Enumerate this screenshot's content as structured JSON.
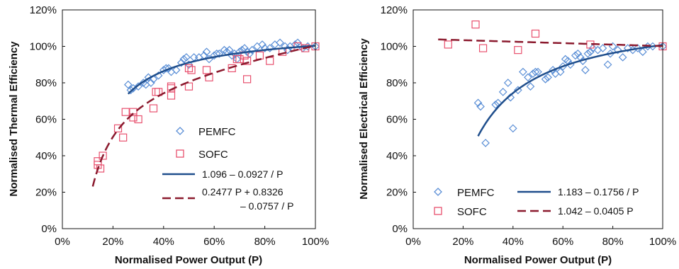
{
  "chart_data": [
    {
      "type": "scatter",
      "id": "thermal",
      "xlabel": "Normalised Power Output (P)",
      "ylabel": "Normalised Thermal Efficiency",
      "xlim": [
        0,
        100
      ],
      "ylim": [
        0,
        120
      ],
      "x_ticks": [
        "0%",
        "20%",
        "40%",
        "60%",
        "80%",
        "100%"
      ],
      "y_ticks": [
        "0%",
        "20%",
        "40%",
        "60%",
        "80%",
        "100%",
        "120%"
      ],
      "grid": false,
      "legend_placement": "lower-right",
      "series": [
        {
          "name": "PEMFC",
          "kind": "points",
          "marker": "diamond",
          "color": "#5b8fd6",
          "points": [
            [
              26,
              79
            ],
            [
              27,
              76
            ],
            [
              28,
              77
            ],
            [
              30,
              78
            ],
            [
              32,
              80
            ],
            [
              33,
              79
            ],
            [
              34,
              83
            ],
            [
              35,
              80
            ],
            [
              36,
              82
            ],
            [
              38,
              84
            ],
            [
              40,
              87
            ],
            [
              41,
              88
            ],
            [
              42,
              88
            ],
            [
              43,
              86
            ],
            [
              45,
              87
            ],
            [
              47,
              91
            ],
            [
              48,
              93
            ],
            [
              49,
              94
            ],
            [
              50,
              90
            ],
            [
              52,
              94
            ],
            [
              54,
              94
            ],
            [
              56,
              95
            ],
            [
              57,
              97
            ],
            [
              58,
              93
            ],
            [
              60,
              95
            ],
            [
              61,
              96
            ],
            [
              62,
              96
            ],
            [
              64,
              98
            ],
            [
              65,
              97
            ],
            [
              66,
              98
            ],
            [
              67,
              95
            ],
            [
              68,
              96
            ],
            [
              69,
              93
            ],
            [
              70,
              97
            ],
            [
              71,
              98
            ],
            [
              72,
              99
            ],
            [
              73,
              97
            ],
            [
              74,
              96
            ],
            [
              75,
              98
            ],
            [
              77,
              100
            ],
            [
              79,
              101
            ],
            [
              80,
              99
            ],
            [
              82,
              99
            ],
            [
              84,
              101
            ],
            [
              86,
              102
            ],
            [
              88,
              100
            ],
            [
              89,
              98
            ],
            [
              90,
              100
            ],
            [
              92,
              101
            ],
            [
              93,
              102
            ],
            [
              95,
              99
            ],
            [
              97,
              100
            ],
            [
              100,
              100
            ]
          ]
        },
        {
          "name": "SOFC",
          "kind": "points",
          "marker": "square",
          "color": "#e8506e",
          "points": [
            [
              14,
              37
            ],
            [
              14,
              35
            ],
            [
              15,
              33
            ],
            [
              16,
              40
            ],
            [
              22,
              55
            ],
            [
              24,
              50
            ],
            [
              25,
              64
            ],
            [
              28,
              64
            ],
            [
              28,
              61
            ],
            [
              30,
              60
            ],
            [
              36,
              66
            ],
            [
              37,
              75
            ],
            [
              38,
              75
            ],
            [
              43,
              73
            ],
            [
              43,
              78
            ],
            [
              43,
              77
            ],
            [
              50,
              88
            ],
            [
              50,
              78
            ],
            [
              51,
              87
            ],
            [
              57,
              87
            ],
            [
              58,
              83
            ],
            [
              67,
              88
            ],
            [
              69,
              93
            ],
            [
              70,
              93
            ],
            [
              72,
              95
            ],
            [
              73,
              82
            ],
            [
              73,
              92
            ],
            [
              78,
              95
            ],
            [
              82,
              92
            ],
            [
              87,
              97
            ],
            [
              93,
              100
            ],
            [
              96,
              99
            ],
            [
              100,
              100
            ]
          ]
        },
        {
          "name": "1.096 – 0.0927 / P",
          "kind": "curve",
          "style": "solid",
          "color": "#1f4e8c",
          "fn": "pem_thermal",
          "range": [
            26,
            100
          ]
        },
        {
          "name": "0.2477 P + 0.8326 – 0.0757 / P",
          "kind": "curve",
          "style": "dashed",
          "color": "#8b1a2e",
          "fn": "sofc_thermal",
          "range": [
            12,
            100
          ]
        }
      ],
      "legend": {
        "pemfc": "PEMFC",
        "sofc": "SOFC",
        "fit1": "1.096 – 0.0927 / P",
        "fit2_line1": "0.2477 P + 0.8326",
        "fit2_line2": "– 0.0757 / P"
      }
    },
    {
      "type": "scatter",
      "id": "electrical",
      "xlabel": "Normalised Power Output (P)",
      "ylabel": "Normalised Electrical Efficiency",
      "xlim": [
        0,
        100
      ],
      "ylim": [
        0,
        120
      ],
      "x_ticks": [
        "0%",
        "20%",
        "40%",
        "60%",
        "80%",
        "100%"
      ],
      "y_ticks": [
        "0%",
        "20%",
        "40%",
        "60%",
        "80%",
        "100%",
        "120%"
      ],
      "grid": false,
      "legend_placement": "lower-right",
      "series": [
        {
          "name": "PEMFC",
          "kind": "points",
          "marker": "diamond",
          "color": "#5b8fd6",
          "points": [
            [
              26,
              69
            ],
            [
              27,
              67
            ],
            [
              29,
              47
            ],
            [
              33,
              68
            ],
            [
              34,
              69
            ],
            [
              36,
              75
            ],
            [
              38,
              80
            ],
            [
              39,
              72
            ],
            [
              40,
              55
            ],
            [
              42,
              76
            ],
            [
              44,
              86
            ],
            [
              46,
              83
            ],
            [
              47,
              78
            ],
            [
              48,
              85
            ],
            [
              49,
              86
            ],
            [
              50,
              86
            ],
            [
              53,
              82
            ],
            [
              54,
              83
            ],
            [
              56,
              87
            ],
            [
              57,
              85
            ],
            [
              59,
              86
            ],
            [
              60,
              89
            ],
            [
              61,
              93
            ],
            [
              62,
              92
            ],
            [
              63,
              90
            ],
            [
              65,
              95
            ],
            [
              66,
              96
            ],
            [
              67,
              94
            ],
            [
              68,
              92
            ],
            [
              69,
              87
            ],
            [
              70,
              96
            ],
            [
              71,
              97
            ],
            [
              72,
              99
            ],
            [
              74,
              98
            ],
            [
              76,
              99
            ],
            [
              78,
              90
            ],
            [
              79,
              96
            ],
            [
              80,
              100
            ],
            [
              82,
              98
            ],
            [
              84,
              94
            ],
            [
              86,
              99
            ],
            [
              88,
              98
            ],
            [
              90,
              99
            ],
            [
              92,
              97
            ],
            [
              94,
              100
            ],
            [
              96,
              100
            ],
            [
              100,
              100
            ]
          ]
        },
        {
          "name": "SOFC",
          "kind": "points",
          "marker": "square",
          "color": "#e8506e",
          "points": [
            [
              14,
              101
            ],
            [
              25,
              112
            ],
            [
              28,
              99
            ],
            [
              42,
              98
            ],
            [
              49,
              107
            ],
            [
              71,
              101
            ],
            [
              100,
              100
            ]
          ]
        },
        {
          "name": "1.183 – 0.1756 / P",
          "kind": "curve",
          "style": "solid",
          "color": "#1f4e8c",
          "fn": "pem_elec",
          "range": [
            26,
            100
          ]
        },
        {
          "name": "1.042 – 0.0405 P",
          "kind": "curve",
          "style": "dashed",
          "color": "#8b1a2e",
          "fn": "sofc_elec",
          "range": [
            10,
            100
          ]
        }
      ],
      "legend": {
        "pemfc": "PEMFC",
        "sofc": "SOFC",
        "fit1": "1.183 – 0.1756 / P",
        "fit2": "1.042 – 0.0405 P"
      }
    }
  ]
}
